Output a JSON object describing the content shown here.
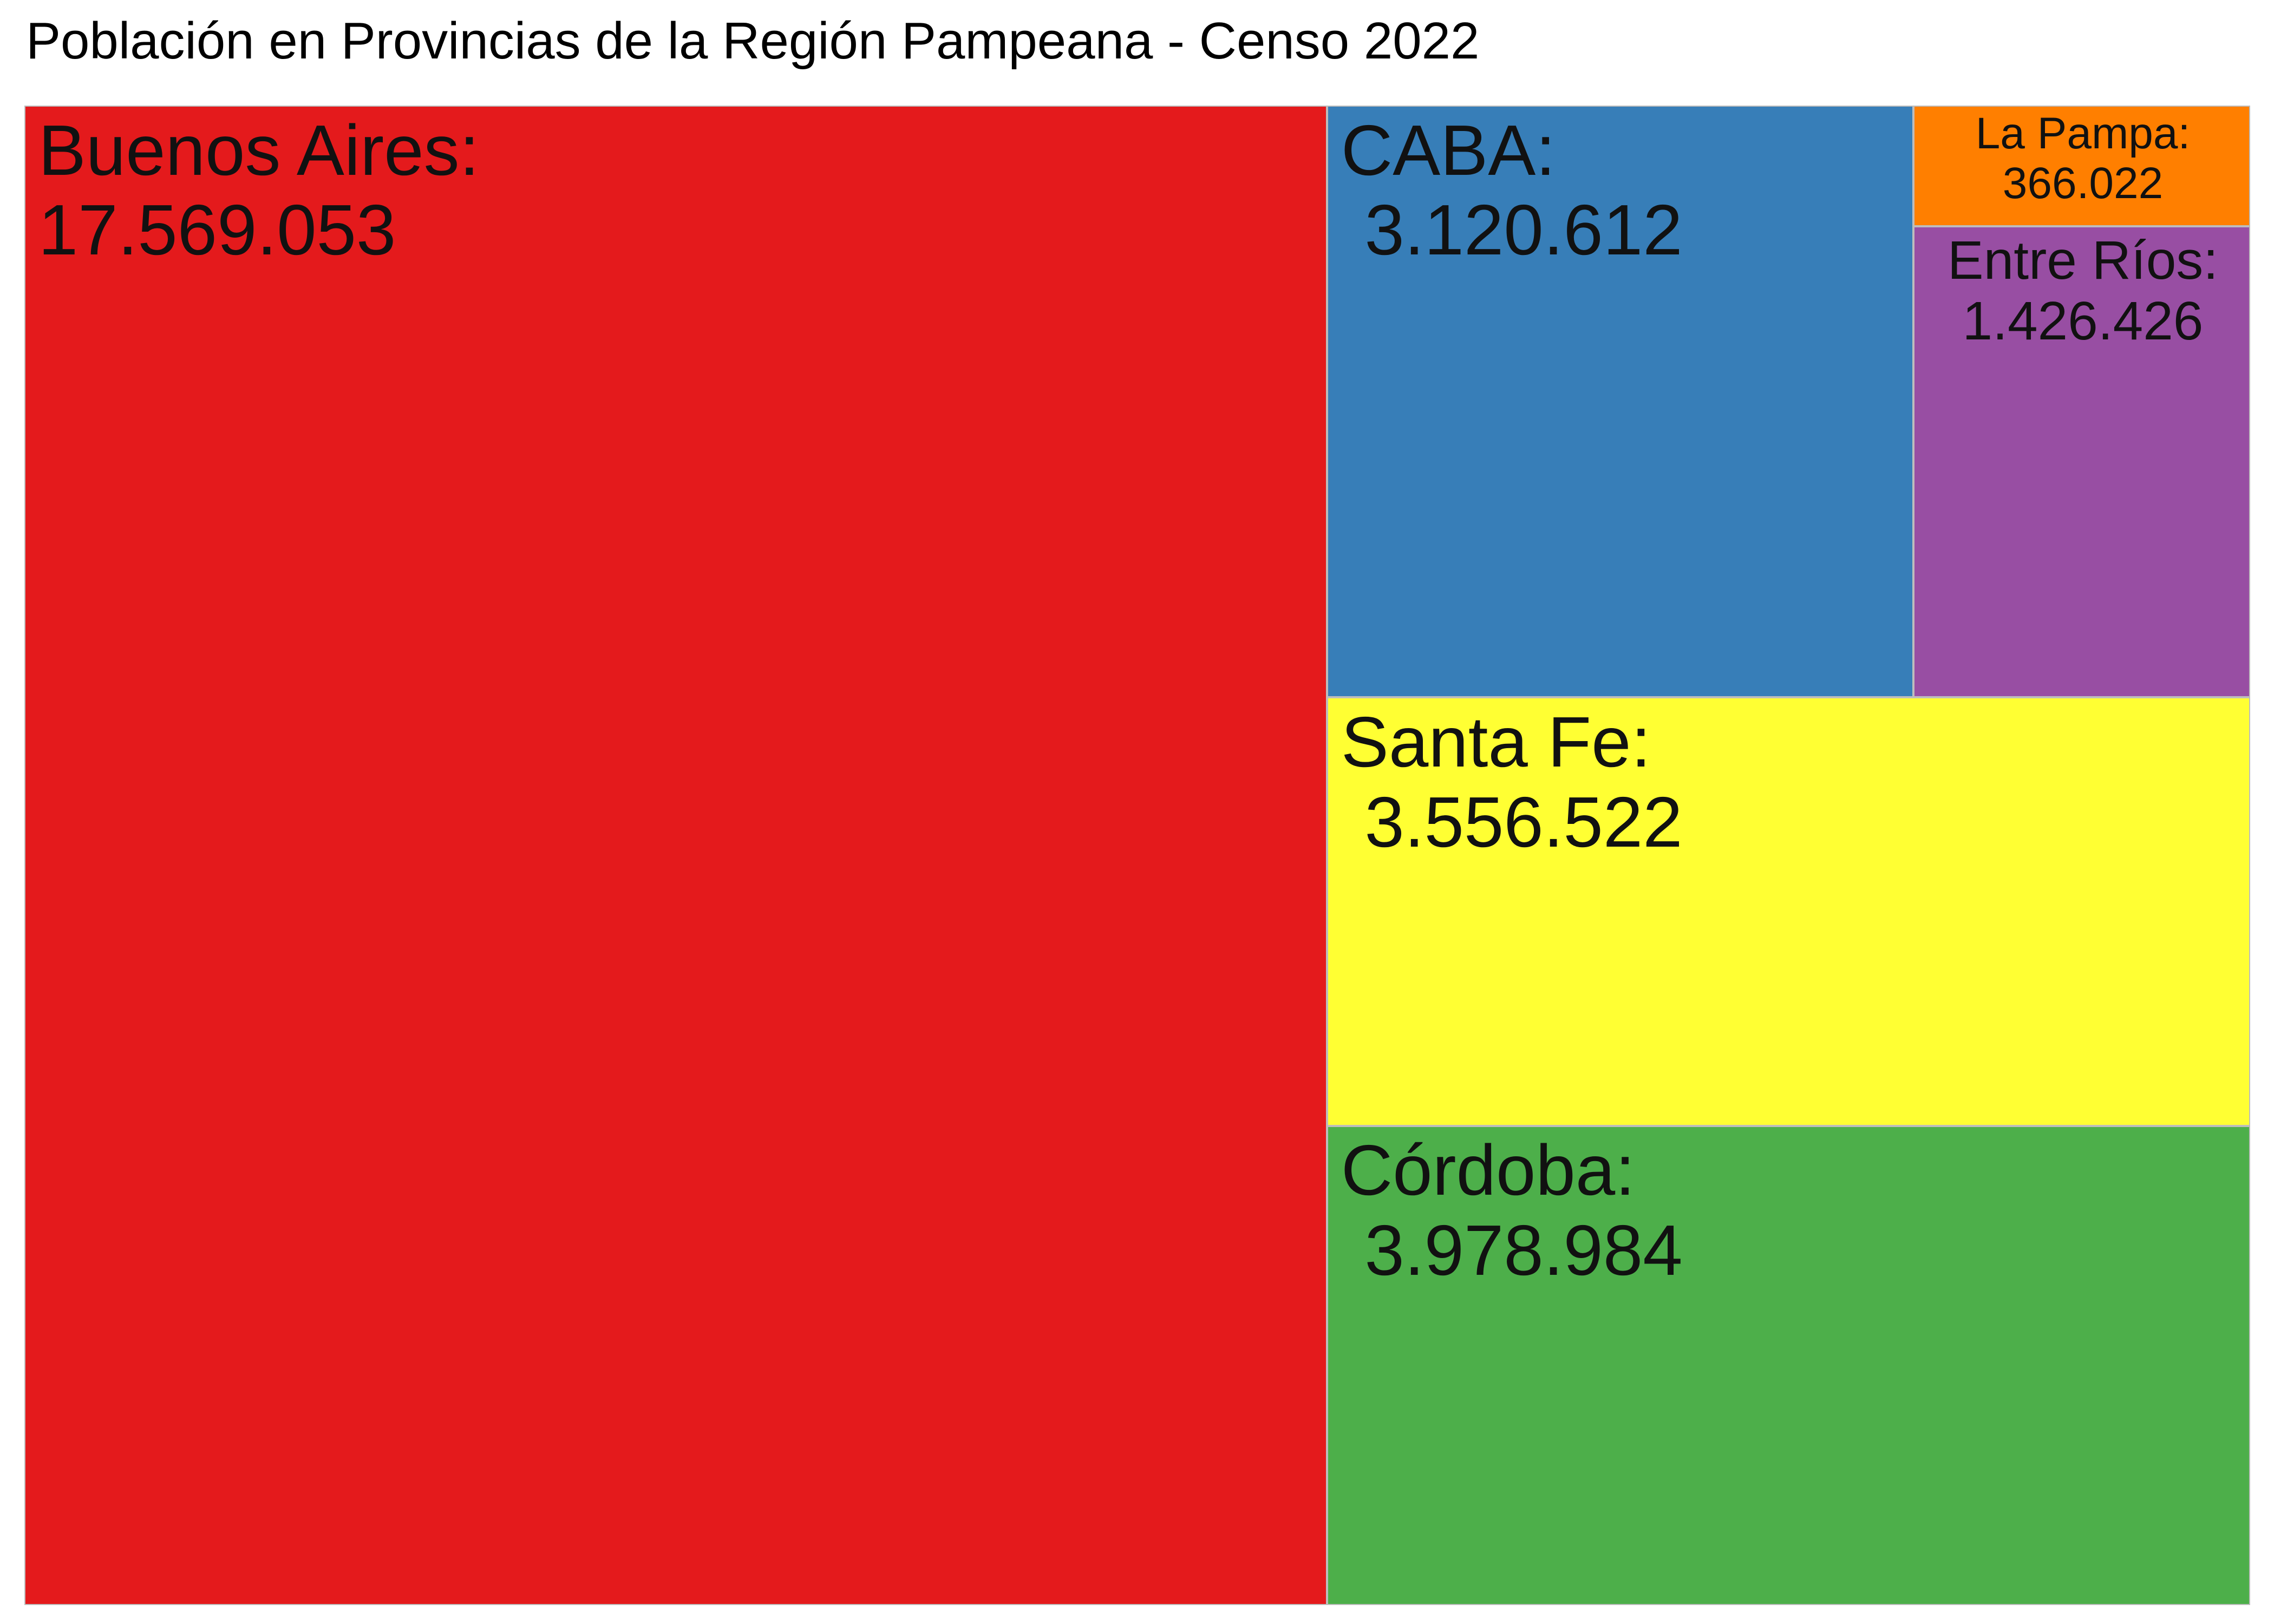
{
  "chart_data": {
    "type": "treemap",
    "title": "Población en Provincias de la Región Pampeana - Censo 2022",
    "items": [
      {
        "name": "Buenos Aires",
        "label": "Buenos Aires:",
        "value": 17569053,
        "value_label": "17.569.053",
        "color": "#e41a1c"
      },
      {
        "name": "CABA",
        "label": "CABA:",
        "value": 3120612,
        "value_label": "3.120.612",
        "color": "#377eb8"
      },
      {
        "name": "La Pampa",
        "label": "La Pampa:",
        "value": 366022,
        "value_label": "366.022",
        "color": "#ff7f00"
      },
      {
        "name": "Entre Ríos",
        "label": "Entre Ríos:",
        "value": 1426426,
        "value_label": "1.426.426",
        "color": "#984ea3"
      },
      {
        "name": "Santa Fe",
        "label": "Santa Fe:",
        "value": 3556522,
        "value_label": "3.556.522",
        "color": "#ffff33"
      },
      {
        "name": "Córdoba",
        "label": "Córdoba:",
        "value": 3978984,
        "value_label": "3.978.984",
        "color": "#4daf4a"
      }
    ]
  }
}
